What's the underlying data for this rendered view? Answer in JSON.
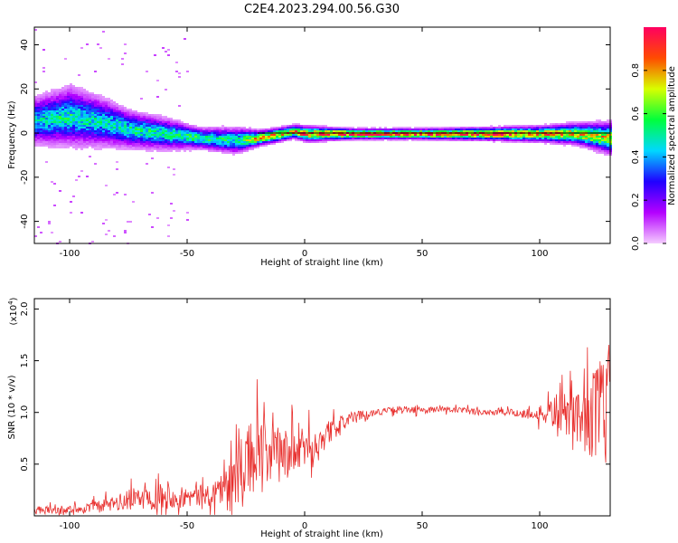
{
  "figure_title": "C2E4.2023.294.00.56.G30",
  "colors": {
    "snr_line": "#e8302e",
    "axis": "#000000",
    "colorbar_stops": [
      "#f5ccff",
      "#b400ff",
      "#2000ff",
      "#00d8ff",
      "#00ff3c",
      "#d8ff00",
      "#ff4b00",
      "#ff0060"
    ]
  },
  "chart_data": [
    {
      "type": "heatmap",
      "xlabel": "Height of straight line (km)",
      "ylabel": "Frequency (Hz)",
      "xlim": [
        -115,
        130
      ],
      "ylim": [
        -50,
        48
      ],
      "xticks": [
        -100,
        -50,
        0,
        50,
        100
      ],
      "yticks": [
        -40,
        -20,
        0,
        20,
        40
      ],
      "colorbar": {
        "label": "Normalized spectral amplitude",
        "range": [
          0,
          1
        ],
        "ticks": [
          "0.0",
          "0.2",
          "0.4",
          "0.6",
          "0.8"
        ]
      },
      "reference_line": {
        "y": 0,
        "x_from": -20,
        "x_to": 130
      },
      "ridge": {
        "description_profile": [
          {
            "x": -115,
            "center": 6,
            "halfwidth": 9,
            "intensity": 0.45
          },
          {
            "x": -100,
            "center": 8,
            "halfwidth": 11,
            "intensity": 0.5
          },
          {
            "x": -85,
            "center": 5,
            "halfwidth": 9,
            "intensity": 0.45
          },
          {
            "x": -75,
            "center": 2,
            "halfwidth": 7,
            "intensity": 0.5
          },
          {
            "x": -60,
            "center": 0,
            "halfwidth": 6,
            "intensity": 0.5
          },
          {
            "x": -45,
            "center": -2,
            "halfwidth": 4,
            "intensity": 0.55
          },
          {
            "x": -30,
            "center": -3,
            "halfwidth": 5,
            "intensity": 0.5
          },
          {
            "x": -20,
            "center": -2,
            "halfwidth": 3,
            "intensity": 0.75
          },
          {
            "x": -5,
            "center": 1,
            "halfwidth": 2.5,
            "intensity": 0.8
          },
          {
            "x": 0,
            "center": 0,
            "halfwidth": 3,
            "intensity": 0.85
          },
          {
            "x": 20,
            "center": 0,
            "halfwidth": 2,
            "intensity": 0.95
          },
          {
            "x": 50,
            "center": 0,
            "halfwidth": 2,
            "intensity": 0.95
          },
          {
            "x": 80,
            "center": 0,
            "halfwidth": 2.5,
            "intensity": 0.9
          },
          {
            "x": 100,
            "center": 0,
            "halfwidth": 3,
            "intensity": 0.8
          },
          {
            "x": 115,
            "center": 0,
            "halfwidth": 4,
            "intensity": 0.75
          },
          {
            "x": 130,
            "center": -2,
            "halfwidth": 6,
            "intensity": 0.7
          }
        ]
      }
    },
    {
      "type": "line",
      "xlabel": "Height of straight line (km)",
      "ylabel": "SNR (10 * v/v)",
      "y_multiplier": "(x10",
      "y_multiplier_exp": "4",
      "y_multiplier_close": ")",
      "xlim": [
        -115,
        130
      ],
      "ylim": [
        0,
        2.1
      ],
      "xticks": [
        -100,
        -50,
        0,
        50,
        100
      ],
      "yticks": [
        0.5,
        1.0,
        1.5,
        2.0
      ],
      "ytick_labels": [
        "0.5",
        "1.0",
        "1.5",
        "2.0"
      ],
      "series": [
        {
          "x": [
            -115,
            -100,
            -90,
            -80,
            -70,
            -60,
            -50,
            -40,
            -30,
            -25,
            -20,
            -15,
            -10,
            -5,
            0,
            5,
            10,
            15,
            20,
            25,
            30,
            40,
            50,
            60,
            70,
            80,
            90,
            95,
            100,
            105,
            110,
            115,
            120,
            125,
            130
          ],
          "values": [
            0.05,
            0.06,
            0.08,
            0.12,
            0.18,
            0.2,
            0.18,
            0.2,
            0.35,
            0.5,
            0.65,
            0.55,
            0.6,
            0.6,
            0.65,
            0.7,
            0.8,
            0.88,
            0.95,
            0.98,
            1.0,
            1.03,
            1.02,
            1.03,
            1.01,
            1.0,
            1.0,
            0.98,
            0.98,
            1.0,
            0.98,
            0.98,
            0.95,
            1.0,
            1.1
          ],
          "noise": [
            0.05,
            0.05,
            0.07,
            0.1,
            0.15,
            0.17,
            0.12,
            0.15,
            0.3,
            0.45,
            0.45,
            0.35,
            0.35,
            0.3,
            0.25,
            0.2,
            0.15,
            0.1,
            0.07,
            0.05,
            0.04,
            0.04,
            0.04,
            0.04,
            0.04,
            0.04,
            0.05,
            0.06,
            0.1,
            0.18,
            0.25,
            0.3,
            0.45,
            0.6,
            0.9
          ]
        }
      ]
    }
  ]
}
